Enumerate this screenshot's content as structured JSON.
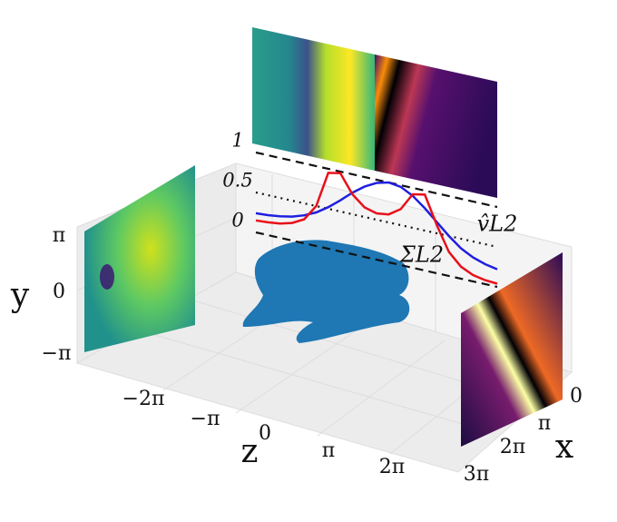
{
  "axes": {
    "x": {
      "label": "x",
      "ticks": [
        "0",
        "π",
        "2π",
        "3π"
      ]
    },
    "y": {
      "label": "y",
      "ticks": [
        "π",
        "0",
        "−π"
      ]
    },
    "z": {
      "label": "z",
      "ticks": [
        "−2π",
        "−π",
        "0",
        "π",
        "2π"
      ]
    }
  },
  "chart_data": {
    "type": "line",
    "x": [
      0,
      0.05,
      0.1,
      0.15,
      0.2,
      0.25,
      0.3,
      0.35,
      0.4,
      0.45,
      0.5,
      0.55,
      0.6,
      0.65,
      0.7,
      0.75,
      0.8,
      0.85,
      0.9,
      0.95,
      1
    ],
    "xlim": [
      0,
      1
    ],
    "ylim": [
      0,
      1
    ],
    "yticks": [
      0,
      0.5,
      1
    ],
    "series": [
      {
        "name": "v̂L2",
        "color": "#1f1fe0",
        "values": [
          0.24,
          0.25,
          0.27,
          0.3,
          0.35,
          0.42,
          0.52,
          0.64,
          0.77,
          0.88,
          0.96,
          1.0,
          0.98,
          0.9,
          0.78,
          0.64,
          0.5,
          0.38,
          0.3,
          0.25,
          0.22
        ]
      },
      {
        "name": "ΣL2",
        "color": "#e8101a",
        "values": [
          0.15,
          0.16,
          0.18,
          0.22,
          0.3,
          0.5,
          0.95,
          0.98,
          0.75,
          0.62,
          0.58,
          0.6,
          0.7,
          0.92,
          0.95,
          0.6,
          0.3,
          0.15,
          0.08,
          0.05,
          0.04
        ]
      }
    ]
  }
}
